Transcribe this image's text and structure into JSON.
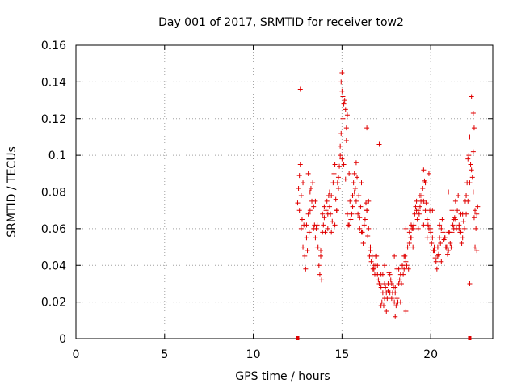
{
  "chart_data": {
    "type": "scatter",
    "title": "Day 001 of 2017, SRMTID for receiver tow2",
    "xlabel": "GPS time / hours",
    "ylabel": "SRMTID / TECUs",
    "xlim": [
      0,
      23.5
    ],
    "ylim": [
      0,
      0.16
    ],
    "xticks": [
      0,
      5,
      10,
      15,
      20
    ],
    "xtick_labels": [
      "0",
      "5",
      "10",
      "15",
      "20"
    ],
    "yticks": [
      0,
      0.02,
      0.04,
      0.06,
      0.08,
      0.1,
      0.12,
      0.14,
      0.16
    ],
    "ytick_labels": [
      "0",
      "0.02",
      "0.04",
      "0.06",
      "0.08",
      "0.1",
      "0.12",
      "0.14",
      "0.16"
    ],
    "grid": true,
    "marker": "+",
    "color": "#e00000",
    "axis_markers": [
      12.5,
      22.2
    ],
    "series": [
      {
        "name": "SRMTID",
        "data_note": "dense point cloud between ~12.5 h and ~22.7 h; representative samples",
        "x": [
          12.5,
          12.6,
          12.7,
          12.8,
          12.9,
          13.0,
          13.1,
          13.2,
          13.3,
          13.4,
          13.5,
          13.6,
          13.7,
          13.8,
          13.9,
          14.0,
          14.1,
          14.2,
          14.3,
          14.4,
          14.5,
          14.6,
          14.7,
          14.8,
          14.9,
          15.0,
          15.1,
          15.2,
          15.3,
          15.4,
          15.5,
          15.6,
          15.7,
          15.8,
          15.9,
          16.0,
          16.1,
          16.2,
          16.3,
          16.4,
          16.5,
          16.6,
          16.7,
          16.8,
          16.9,
          17.0,
          17.1,
          17.2,
          17.3,
          17.4,
          17.5,
          17.6,
          17.7,
          17.8,
          17.9,
          18.0,
          18.1,
          18.2,
          18.3,
          18.4,
          18.5,
          18.6,
          18.7,
          18.8,
          18.9,
          19.0,
          19.1,
          19.2,
          19.3,
          19.4,
          19.5,
          19.6,
          19.7,
          19.8,
          19.9,
          20.0,
          20.1,
          20.2,
          20.3,
          20.4,
          20.5,
          20.6,
          20.7,
          20.8,
          20.9,
          21.0,
          21.1,
          21.2,
          21.3,
          21.4,
          21.5,
          21.6,
          21.7,
          21.8,
          21.9,
          22.0,
          22.1,
          22.2,
          22.3,
          22.4,
          22.5,
          22.6,
          12.55,
          12.65,
          12.75,
          12.85,
          12.95,
          13.05,
          13.15,
          13.25,
          13.35,
          13.45,
          13.55,
          13.65,
          13.75,
          13.85,
          13.95,
          14.05,
          14.15,
          14.25,
          14.35,
          14.45,
          14.55,
          14.65,
          14.75,
          14.85,
          14.95,
          15.05,
          15.15,
          15.25,
          15.35,
          15.45,
          15.55,
          15.65,
          15.75,
          15.85,
          15.95,
          16.05,
          16.15,
          16.25,
          16.35,
          16.45,
          16.55,
          16.65,
          16.75,
          16.85,
          16.95,
          17.05,
          17.15,
          17.25,
          17.35,
          17.45,
          17.55,
          17.65,
          17.75,
          17.85,
          17.95,
          18.05,
          18.15,
          18.25,
          18.35,
          18.45,
          18.55,
          18.65,
          18.75,
          18.85,
          18.95,
          19.05,
          19.15,
          19.25,
          19.35,
          19.45,
          19.55,
          19.65,
          19.75,
          19.85,
          19.95,
          20.05,
          20.15,
          20.25,
          20.35,
          20.45,
          20.55,
          20.65,
          20.75,
          20.85,
          20.95,
          21.05,
          21.15,
          21.25,
          21.35,
          21.45,
          21.55,
          21.65,
          21.75,
          21.85,
          21.95,
          22.05,
          22.15,
          22.25,
          22.35,
          22.45,
          22.55,
          22.65,
          12.6,
          12.8,
          13.0,
          13.2,
          13.4,
          13.6,
          13.8,
          14.0,
          14.2,
          14.4,
          14.6,
          14.8,
          15.0,
          15.2,
          15.4,
          15.6,
          15.8,
          16.0,
          16.2,
          16.4,
          16.6,
          16.8,
          17.0,
          17.2,
          17.4,
          17.6,
          17.8,
          18.0,
          18.2,
          18.4,
          18.6,
          18.8,
          19.0,
          19.2,
          19.4,
          19.6,
          19.8,
          20.0,
          20.2,
          20.4,
          20.6,
          20.8,
          21.0,
          21.2,
          21.4,
          21.6,
          21.8,
          22.0,
          22.2,
          22.4,
          22.6,
          12.7,
          13.1,
          13.5,
          13.9,
          14.3,
          14.7,
          14.9,
          15.0,
          15.1,
          15.3,
          15.7,
          16.1,
          16.5,
          16.9,
          17.3,
          17.7,
          18.1,
          18.5,
          18.9,
          19.3,
          19.7,
          20.1,
          20.5,
          20.9,
          21.3,
          21.7,
          22.1,
          22.5,
          12.65,
          14.95,
          15.05,
          15.25,
          16.4,
          17.1,
          19.6,
          19.9,
          21.0,
          22.3,
          22.4,
          22.45,
          22.2,
          18.0,
          17.5,
          17.95,
          18.3,
          18.6,
          17.4,
          17.2
        ],
        "y": [
          0.074,
          0.089,
          0.078,
          0.05,
          0.045,
          0.062,
          0.068,
          0.07,
          0.075,
          0.072,
          0.055,
          0.05,
          0.04,
          0.045,
          0.058,
          0.066,
          0.07,
          0.06,
          0.072,
          0.078,
          0.085,
          0.062,
          0.07,
          0.088,
          0.1,
          0.098,
          0.095,
          0.087,
          0.068,
          0.062,
          0.065,
          0.072,
          0.08,
          0.075,
          0.068,
          0.06,
          0.058,
          0.052,
          0.065,
          0.07,
          0.06,
          0.05,
          0.045,
          0.04,
          0.045,
          0.035,
          0.03,
          0.028,
          0.025,
          0.022,
          0.025,
          0.03,
          0.035,
          0.03,
          0.028,
          0.025,
          0.022,
          0.03,
          0.035,
          0.04,
          0.038,
          0.042,
          0.05,
          0.058,
          0.062,
          0.06,
          0.068,
          0.075,
          0.07,
          0.072,
          0.078,
          0.075,
          0.07,
          0.065,
          0.06,
          0.058,
          0.055,
          0.048,
          0.042,
          0.05,
          0.055,
          0.06,
          0.058,
          0.055,
          0.05,
          0.048,
          0.052,
          0.058,
          0.06,
          0.065,
          0.07,
          0.062,
          0.058,
          0.055,
          0.06,
          0.068,
          0.075,
          0.085,
          0.092,
          0.08,
          0.07,
          0.068,
          0.082,
          0.095,
          0.065,
          0.062,
          0.038,
          0.048,
          0.058,
          0.082,
          0.085,
          0.062,
          0.06,
          0.05,
          0.035,
          0.032,
          0.062,
          0.058,
          0.075,
          0.078,
          0.068,
          0.064,
          0.09,
          0.076,
          0.085,
          0.094,
          0.112,
          0.12,
          0.13,
          0.108,
          0.062,
          0.075,
          0.068,
          0.085,
          0.082,
          0.088,
          0.078,
          0.072,
          0.058,
          0.062,
          0.074,
          0.056,
          0.045,
          0.042,
          0.038,
          0.035,
          0.045,
          0.032,
          0.03,
          0.02,
          0.018,
          0.028,
          0.022,
          0.036,
          0.032,
          0.025,
          0.02,
          0.018,
          0.02,
          0.032,
          0.03,
          0.035,
          0.045,
          0.04,
          0.038,
          0.055,
          0.06,
          0.062,
          0.072,
          0.065,
          0.068,
          0.075,
          0.082,
          0.086,
          0.074,
          0.062,
          0.07,
          0.052,
          0.048,
          0.044,
          0.038,
          0.046,
          0.052,
          0.065,
          0.054,
          0.05,
          0.046,
          0.058,
          0.05,
          0.062,
          0.066,
          0.06,
          0.078,
          0.058,
          0.052,
          0.064,
          0.075,
          0.085,
          0.1,
          0.095,
          0.088,
          0.066,
          0.06,
          0.072,
          0.07,
          0.085,
          0.055,
          0.08,
          0.06,
          0.062,
          0.048,
          0.072,
          0.068,
          0.058,
          0.095,
          0.082,
          0.135,
          0.125,
          0.09,
          0.078,
          0.096,
          0.066,
          0.052,
          0.07,
          0.048,
          0.038,
          0.04,
          0.035,
          0.03,
          0.026,
          0.022,
          0.028,
          0.038,
          0.04,
          0.06,
          0.052,
          0.05,
          0.07,
          0.078,
          0.062,
          0.055,
          0.06,
          0.05,
          0.045,
          0.042,
          0.055,
          0.058,
          0.07,
          0.075,
          0.06,
          0.068,
          0.078,
          0.11,
          0.102,
          0.048,
          0.06,
          0.09,
          0.075,
          0.068,
          0.08,
          0.07,
          0.105,
          0.145,
          0.128,
          0.122,
          0.09,
          0.085,
          0.075,
          0.04,
          0.035,
          0.025,
          0.038,
          0.045,
          0.055,
          0.06,
          0.085,
          0.07,
          0.062,
          0.05,
          0.065,
          0.068,
          0.098,
          0.05,
          0.136,
          0.14,
          0.132,
          0.115,
          0.115,
          0.106,
          0.092,
          0.09,
          0.08,
          0.132,
          0.123,
          0.115,
          0.03,
          0.012,
          0.015,
          0.045,
          0.02,
          0.015,
          0.04,
          0.018
        ]
      }
    ]
  }
}
